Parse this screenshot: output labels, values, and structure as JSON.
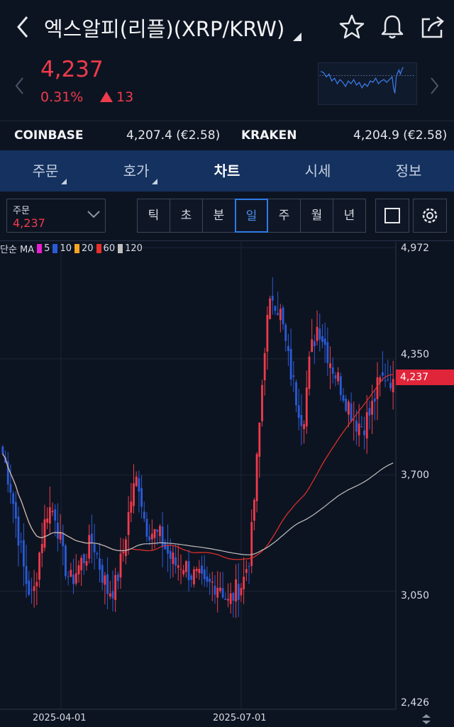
{
  "header": {
    "title": "엑스알피(리플)(XRP/KRW)",
    "icons": [
      "back-icon",
      "star-icon",
      "bell-icon",
      "share-icon"
    ]
  },
  "quote": {
    "price": "4,237",
    "change_pct": "0.31%",
    "change_abs": "13",
    "direction": "up",
    "color": "#ef3b4c"
  },
  "exchanges": [
    {
      "name": "COINBASE",
      "value": "4,207.4 (€2.58)"
    },
    {
      "name": "KRAKEN",
      "value": "4,204.9 (€2.58)"
    }
  ],
  "tabs": [
    {
      "label": "주문",
      "active": false,
      "has_menu": true
    },
    {
      "label": "호가",
      "active": false,
      "has_menu": true
    },
    {
      "label": "차트",
      "active": true,
      "has_menu": false
    },
    {
      "label": "시세",
      "active": false,
      "has_menu": false
    },
    {
      "label": "정보",
      "active": false,
      "has_menu": false
    }
  ],
  "toolbar": {
    "order_label": "주문",
    "order_value": "4,237",
    "periods": [
      "틱",
      "초",
      "분",
      "일",
      "주",
      "월",
      "년"
    ],
    "active_period": "일"
  },
  "chart_data": {
    "type": "candlestick",
    "legend": {
      "prefix": "단순 MA",
      "items": [
        {
          "label": "5",
          "color": "#e91ecf"
        },
        {
          "label": "10",
          "color": "#2a5bd7"
        },
        {
          "label": "20",
          "color": "#f5a623"
        },
        {
          "label": "60",
          "color": "#e8302c"
        },
        {
          "label": "120",
          "color": "#bfbfbf"
        }
      ]
    },
    "y_ticks": [
      "4,972",
      "4,350",
      "3,700",
      "3,050",
      "2,426"
    ],
    "ylim": [
      2426,
      4972
    ],
    "x_ticks": [
      "2025-04-01",
      "2025-07-01"
    ],
    "current_price_tag": "4,237",
    "close_approx": [
      3820,
      3650,
      3390,
      3120,
      3000,
      3300,
      3520,
      3490,
      3240,
      3100,
      3180,
      3250,
      3340,
      3180,
      3050,
      3080,
      3260,
      3550,
      3700,
      3420,
      3380,
      3350,
      3260,
      3200,
      3210,
      3150,
      3120,
      3060,
      3100,
      3090,
      2980,
      3050,
      3100,
      3280,
      3850,
      4500,
      4720,
      4600,
      4350,
      4150,
      4000,
      4380,
      4550,
      4420,
      4300,
      4200,
      4100,
      4000,
      3980,
      4050,
      4200,
      4260,
      4237
    ],
    "ma_color": {
      "up": "#ef3b4c",
      "down": "#2a5bd7"
    }
  }
}
